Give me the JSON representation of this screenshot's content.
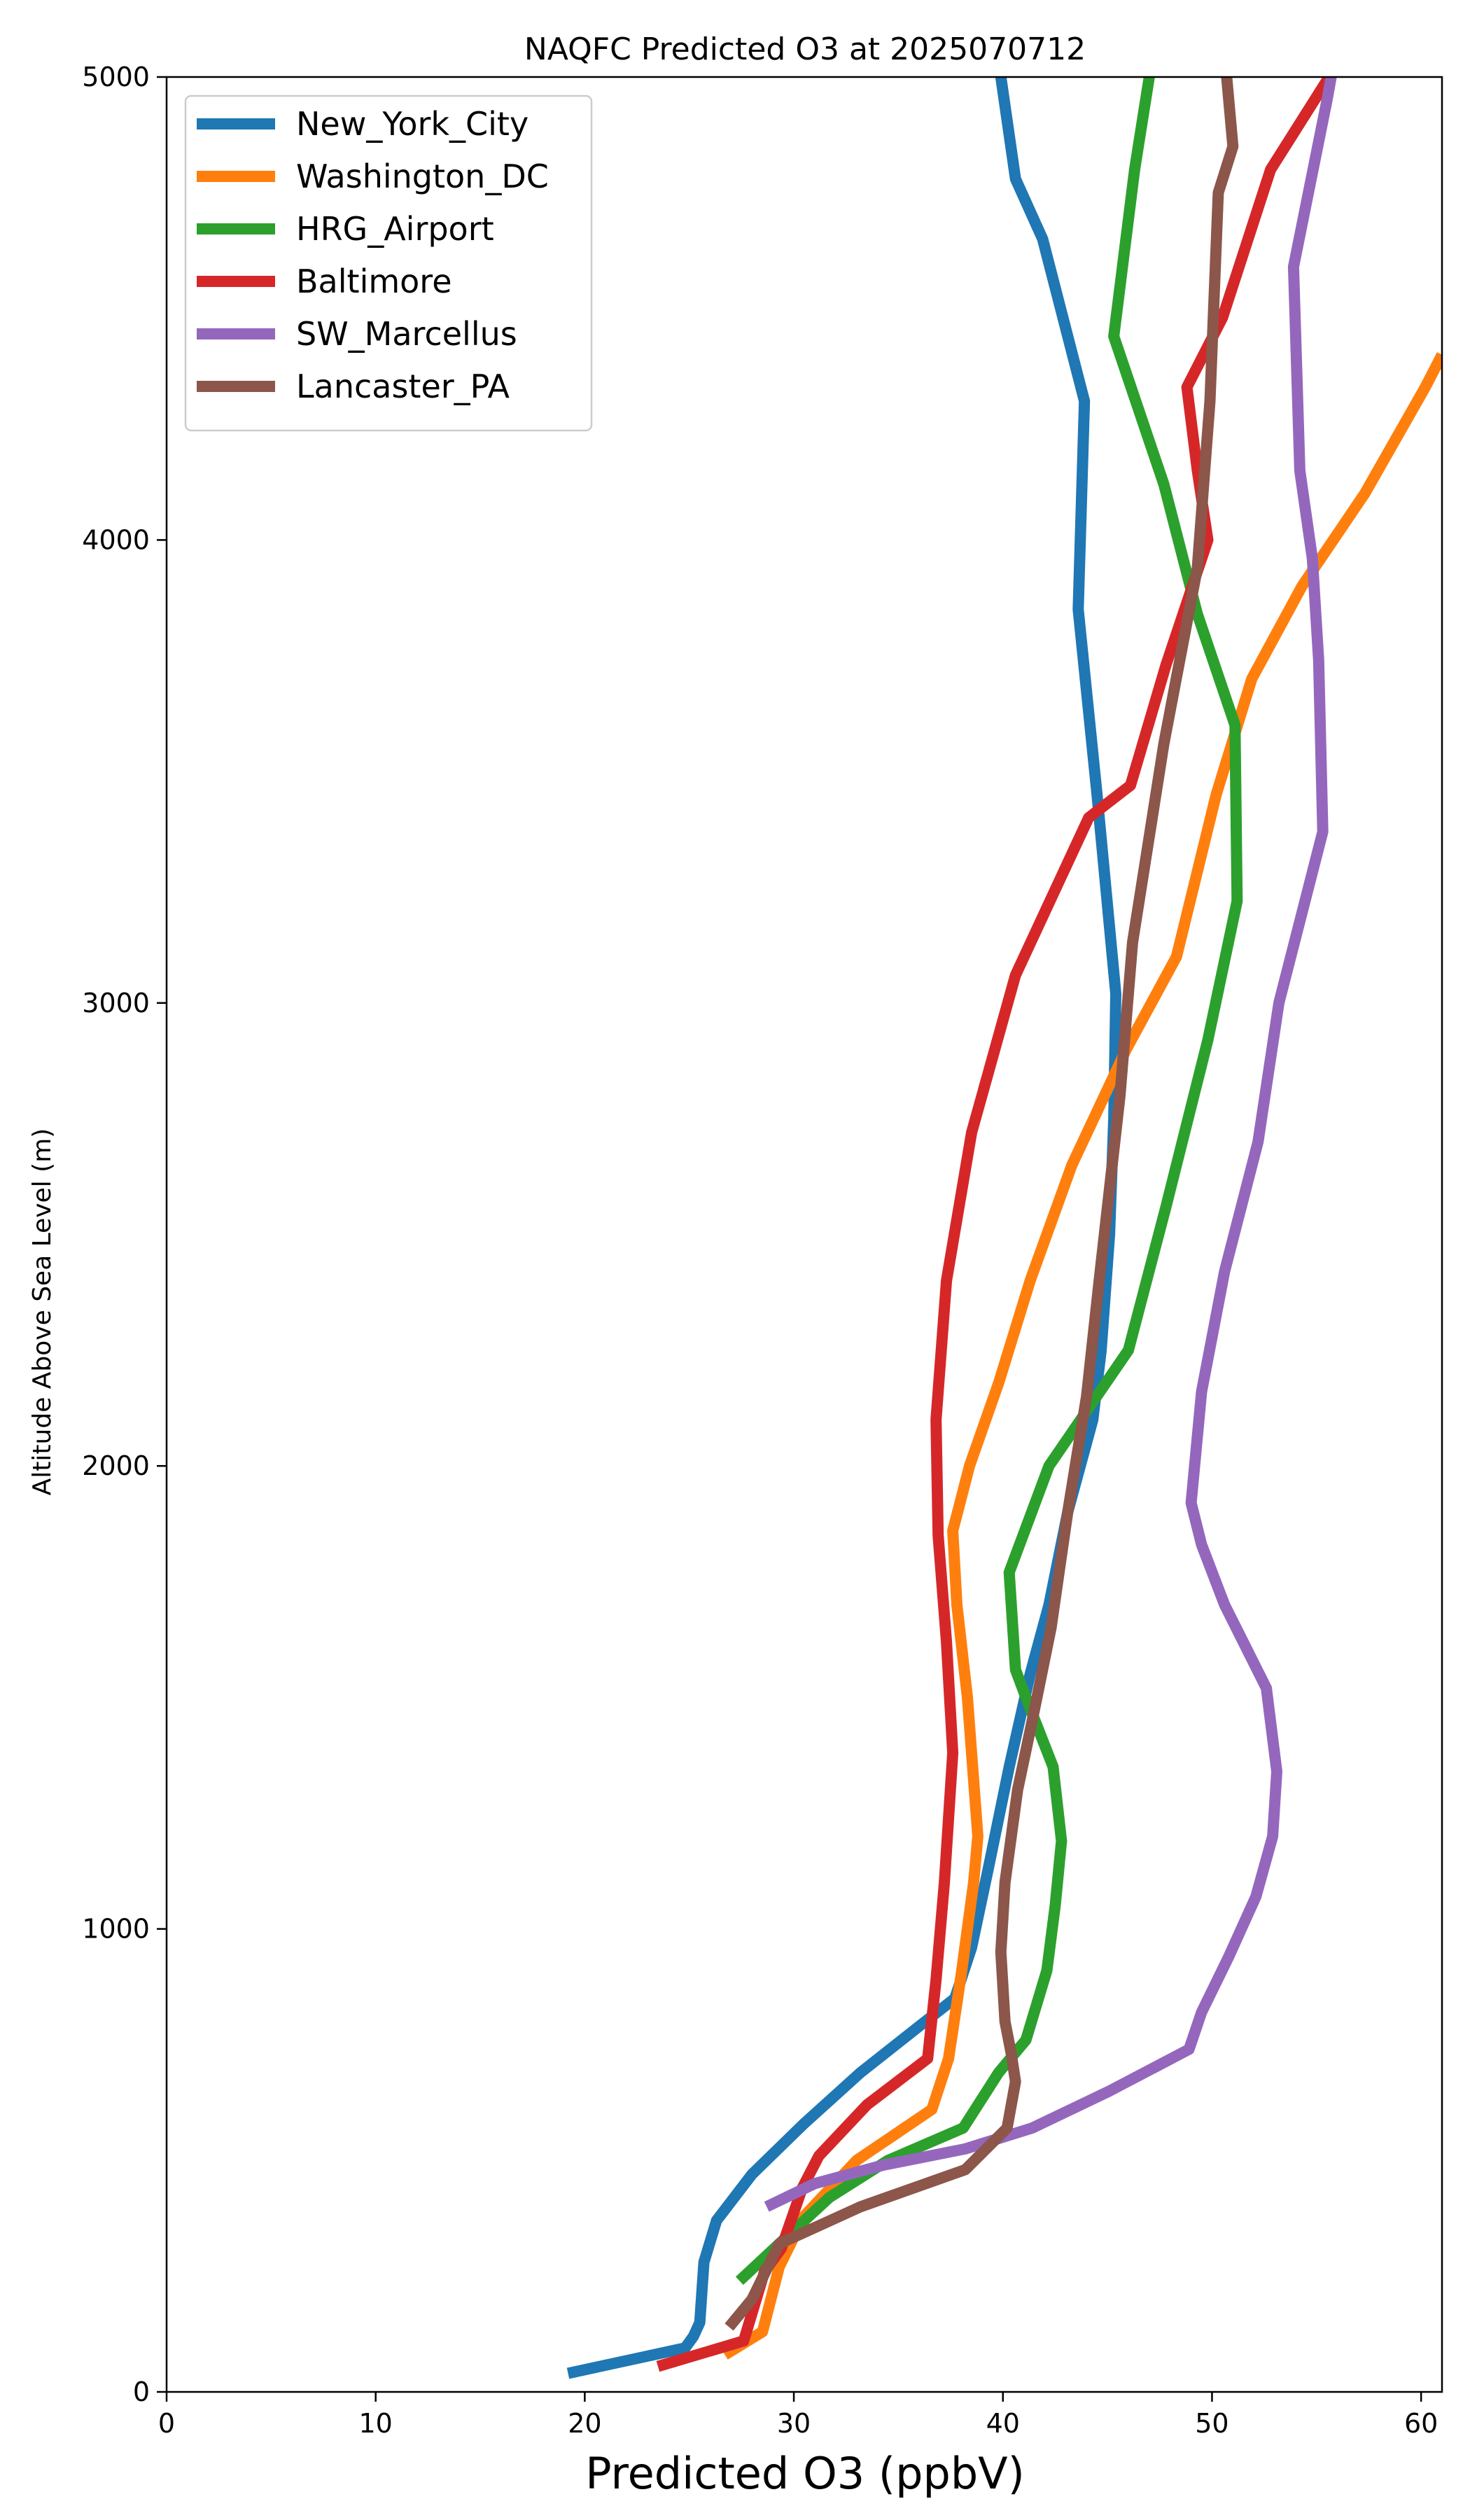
{
  "chart_data": {
    "type": "line",
    "title": "NAQFC Predicted O3 at 2025070712",
    "xlabel": "Predicted O3 (ppbV)",
    "ylabel": "Altitude Above Sea Level (m)",
    "xlim": [
      0,
      61
    ],
    "ylim": [
      0,
      5000
    ],
    "xticks": [
      "0",
      "10",
      "20",
      "30",
      "40",
      "50",
      "60"
    ],
    "yticks": [
      "0",
      "1000",
      "2000",
      "3000",
      "4000",
      "5000"
    ],
    "grid": false,
    "legend_position": "top-left",
    "series": [
      {
        "name": "New_York_City",
        "color": "#1f77b4",
        "points": [
          [
            19.2,
            40
          ],
          [
            24.8,
            95
          ],
          [
            25.2,
            120
          ],
          [
            25.5,
            150
          ],
          [
            25.7,
            280
          ],
          [
            26.3,
            370
          ],
          [
            28,
            470
          ],
          [
            30.5,
            580
          ],
          [
            33.2,
            690
          ],
          [
            36,
            790
          ],
          [
            37.7,
            850
          ],
          [
            38.5,
            960
          ],
          [
            39.3,
            1130
          ],
          [
            40.3,
            1350
          ],
          [
            41.3,
            1550
          ],
          [
            42.2,
            1700
          ],
          [
            43.1,
            1900
          ],
          [
            44.3,
            2100
          ],
          [
            44.7,
            2250
          ],
          [
            45.1,
            2500
          ],
          [
            45.3,
            2750
          ],
          [
            45.4,
            3020
          ],
          [
            44.5,
            3450
          ],
          [
            43.6,
            3850
          ],
          [
            43.9,
            4300
          ],
          [
            41.9,
            4650
          ],
          [
            40.6,
            4780
          ],
          [
            39.9,
            5000
          ]
        ]
      },
      {
        "name": "Washington_DC",
        "color": "#ff7f0e",
        "points": [
          [
            26.7,
            80
          ],
          [
            28.5,
            130
          ],
          [
            29.3,
            270
          ],
          [
            30.5,
            380
          ],
          [
            33,
            500
          ],
          [
            36.6,
            610
          ],
          [
            37.4,
            720
          ],
          [
            38,
            900
          ],
          [
            38.6,
            1100
          ],
          [
            38.8,
            1200
          ],
          [
            38.3,
            1500
          ],
          [
            37.8,
            1700
          ],
          [
            37.6,
            1860
          ],
          [
            38.4,
            2000
          ],
          [
            39.8,
            2180
          ],
          [
            41.3,
            2400
          ],
          [
            43.3,
            2650
          ],
          [
            45.9,
            2900
          ],
          [
            48.3,
            3100
          ],
          [
            50.2,
            3450
          ],
          [
            51.9,
            3700
          ],
          [
            54.3,
            3900
          ],
          [
            57.3,
            4100
          ],
          [
            60.2,
            4330
          ],
          [
            61,
            4400
          ]
        ]
      },
      {
        "name": "HRG_Airport",
        "color": "#2ca02c",
        "points": [
          [
            27.4,
            240
          ],
          [
            29.3,
            320
          ],
          [
            31.7,
            420
          ],
          [
            34.5,
            500
          ],
          [
            38.1,
            570
          ],
          [
            39.8,
            690
          ],
          [
            41.1,
            760
          ],
          [
            42.1,
            910
          ],
          [
            42.5,
            1050
          ],
          [
            42.8,
            1190
          ],
          [
            42.4,
            1350
          ],
          [
            41.1,
            1500
          ],
          [
            40.6,
            1560
          ],
          [
            40.3,
            1770
          ],
          [
            42.2,
            2000
          ],
          [
            46,
            2250
          ],
          [
            47.8,
            2560
          ],
          [
            49.8,
            2920
          ],
          [
            51.2,
            3220
          ],
          [
            51.1,
            3600
          ],
          [
            49.3,
            3840
          ],
          [
            47.7,
            4120
          ],
          [
            45.3,
            4440
          ],
          [
            46.3,
            4800
          ],
          [
            47,
            5000
          ]
        ]
      },
      {
        "name": "Baltimore",
        "color": "#d62728",
        "points": [
          [
            23.5,
            55
          ],
          [
            27.6,
            110
          ],
          [
            28.2,
            200
          ],
          [
            28.6,
            260
          ],
          [
            29.4,
            310
          ],
          [
            30.4,
            440
          ],
          [
            31.2,
            510
          ],
          [
            33.5,
            620
          ],
          [
            36.4,
            720
          ],
          [
            36.8,
            890
          ],
          [
            37.2,
            1100
          ],
          [
            37.6,
            1380
          ],
          [
            37.3,
            1620
          ],
          [
            36.9,
            1850
          ],
          [
            36.8,
            2100
          ],
          [
            37.3,
            2400
          ],
          [
            38.5,
            2720
          ],
          [
            40.6,
            3060
          ],
          [
            44.1,
            3400
          ],
          [
            46.1,
            3470
          ],
          [
            47.8,
            3730
          ],
          [
            49.8,
            4000
          ],
          [
            49.3,
            4150
          ],
          [
            48.8,
            4330
          ],
          [
            50.5,
            4480
          ],
          [
            52.8,
            4800
          ],
          [
            55.6,
            5000
          ]
        ]
      },
      {
        "name": "SW_Marcellus",
        "color": "#9467bd",
        "points": [
          [
            28.7,
            400
          ],
          [
            31,
            450
          ],
          [
            34.3,
            490
          ],
          [
            38.2,
            525
          ],
          [
            41.4,
            570
          ],
          [
            45.1,
            650
          ],
          [
            48.9,
            740
          ],
          [
            49.5,
            820
          ],
          [
            50.8,
            940
          ],
          [
            52.1,
            1070
          ],
          [
            52.9,
            1200
          ],
          [
            53.1,
            1340
          ],
          [
            52.6,
            1520
          ],
          [
            50.6,
            1700
          ],
          [
            49.5,
            1830
          ],
          [
            49,
            1920
          ],
          [
            49.5,
            2160
          ],
          [
            50.6,
            2420
          ],
          [
            52.2,
            2700
          ],
          [
            53.2,
            3000
          ],
          [
            55.3,
            3370
          ],
          [
            55.1,
            3740
          ],
          [
            54.8,
            3960
          ],
          [
            54.2,
            4150
          ],
          [
            53.9,
            4590
          ],
          [
            55.5,
            4950
          ],
          [
            55.7,
            5000
          ]
        ]
      },
      {
        "name": "Lancaster_PA",
        "color": "#8c564b",
        "points": [
          [
            26.9,
            140
          ],
          [
            28,
            200
          ],
          [
            29.3,
            320
          ],
          [
            33.2,
            400
          ],
          [
            38.2,
            480
          ],
          [
            40.2,
            570
          ],
          [
            40.6,
            670
          ],
          [
            40.4,
            730
          ],
          [
            40.1,
            800
          ],
          [
            39.9,
            950
          ],
          [
            40.1,
            1100
          ],
          [
            40.7,
            1300
          ],
          [
            41.4,
            1450
          ],
          [
            42.3,
            1650
          ],
          [
            43.1,
            1900
          ],
          [
            44,
            2150
          ],
          [
            44.6,
            2400
          ],
          [
            45.6,
            2800
          ],
          [
            46.2,
            3130
          ],
          [
            47.7,
            3560
          ],
          [
            49.3,
            3940
          ],
          [
            49.9,
            4300
          ],
          [
            50.3,
            4750
          ],
          [
            51,
            4850
          ],
          [
            50.7,
            5000
          ]
        ]
      }
    ]
  }
}
